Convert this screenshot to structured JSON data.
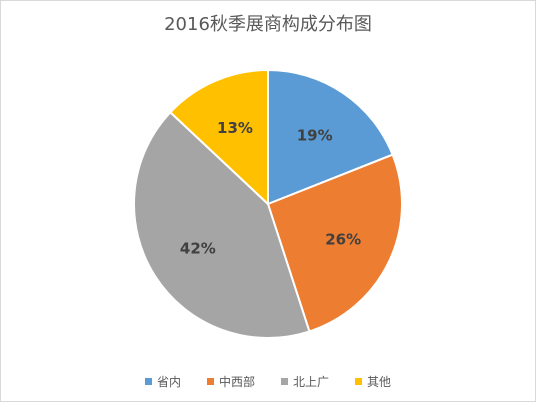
{
  "chart_data": {
    "type": "pie",
    "title": "2016秋季展商构成分布图",
    "categories": [
      "省内",
      "中西部",
      "北上广",
      "其他"
    ],
    "values": [
      19,
      26,
      42,
      13
    ],
    "data_labels": [
      "19%",
      "26%",
      "42%",
      "13%"
    ],
    "colors": [
      "#5b9bd5",
      "#ed7d31",
      "#a5a5a5",
      "#ffc000"
    ],
    "legend_position": "bottom",
    "start_angle": "12 o'clock",
    "direction": "clockwise"
  }
}
